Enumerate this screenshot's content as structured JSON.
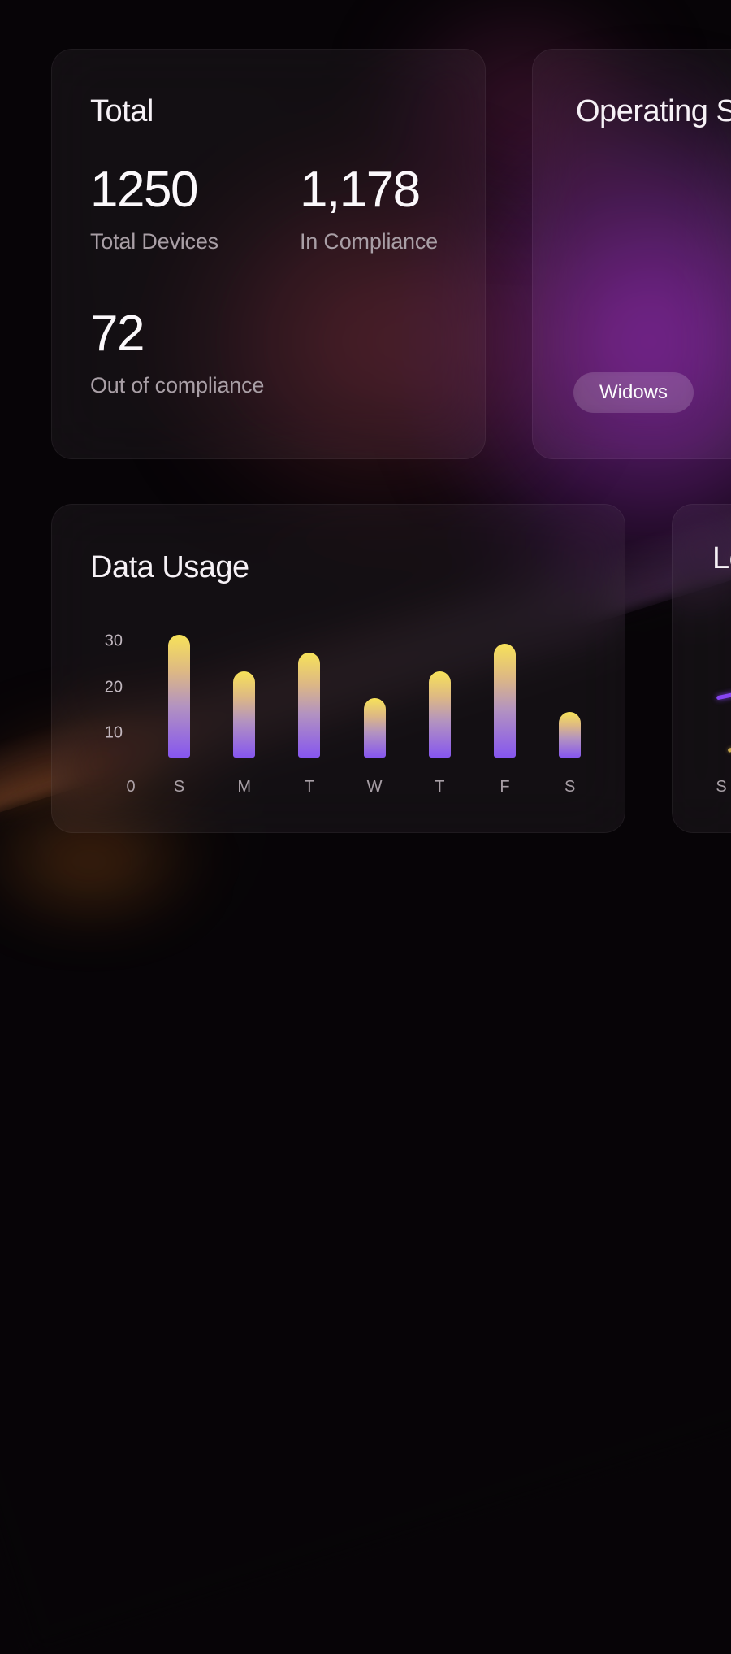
{
  "cards": {
    "total": {
      "title": "Total",
      "stats": [
        {
          "value": "1250",
          "label": "Total Devices"
        },
        {
          "value": "1,178",
          "label": "In Compliance"
        },
        {
          "value": "72",
          "label": "Out of compliance"
        }
      ]
    },
    "operating_systems": {
      "title": "Operating S",
      "badges": [
        "Widows"
      ]
    },
    "data_usage": {
      "title": "Data Usage"
    },
    "bottom_right": {
      "title": "Lo"
    }
  },
  "chart_data": [
    {
      "type": "bar",
      "title": "Data Usage",
      "categories": [
        "S",
        "M",
        "T",
        "W",
        "T",
        "F",
        "S"
      ],
      "values": [
        31,
        23,
        27,
        17,
        23,
        29,
        14
      ],
      "y_ticks": [
        30,
        20,
        10
      ],
      "x_origin_label": "0",
      "xlabel": "",
      "ylabel": "",
      "ylim": [
        0,
        35
      ],
      "grid": false,
      "legend": "none",
      "bar_gradient_top": "#f7e259",
      "bar_gradient_bottom": "#8656ef"
    },
    {
      "type": "line",
      "title": "Lo",
      "x_tick_labels": [
        "S"
      ],
      "series": [
        {
          "name": "purple-line",
          "color": "#8745f2"
        },
        {
          "name": "yellow-line",
          "color": "#c9a94e"
        }
      ],
      "note": "clipped at right viewport edge; only line fragments and one tick visible"
    }
  ],
  "colors": {
    "accent_purple": "#8656ef",
    "accent_yellow": "#f7e259",
    "glow_purple": "#7b2496",
    "glow_maroon": "#7d2a3a",
    "glow_orange": "#d86c22",
    "card_text": "#f6f1f6",
    "muted_text": "#a99fa6"
  }
}
